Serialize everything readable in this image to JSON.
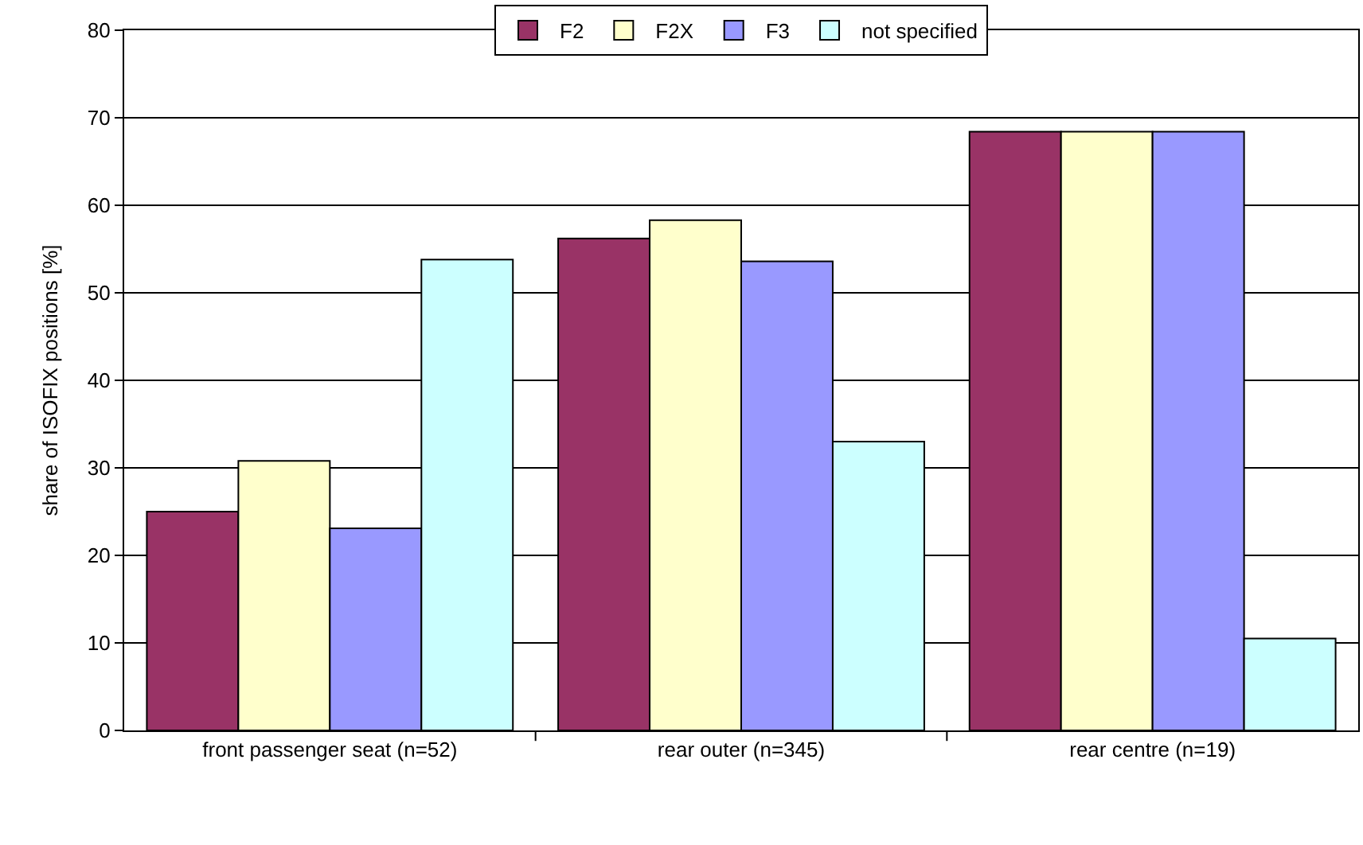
{
  "chart_data": {
    "type": "bar",
    "ylabel": "share of ISOFIX positions [%]",
    "categories": [
      "front passenger seat (n=52)",
      "rear outer (n=345)",
      "rear centre (n=19)"
    ],
    "series": [
      {
        "name": "F2",
        "color": "#993366",
        "values": [
          25.0,
          56.2,
          68.4
        ]
      },
      {
        "name": "F2X",
        "color": "#ffffcc",
        "values": [
          30.8,
          58.3,
          68.4
        ]
      },
      {
        "name": "F3",
        "color": "#9999ff",
        "values": [
          23.1,
          53.6,
          68.4
        ]
      },
      {
        "name": "not specified",
        "color": "#ccffff",
        "values": [
          53.8,
          33.0,
          10.5
        ]
      }
    ],
    "ylim": [
      0,
      80
    ],
    "yticks": [
      0,
      10,
      20,
      30,
      40,
      50,
      60,
      70,
      80
    ],
    "grid": "y",
    "legend": "top"
  }
}
